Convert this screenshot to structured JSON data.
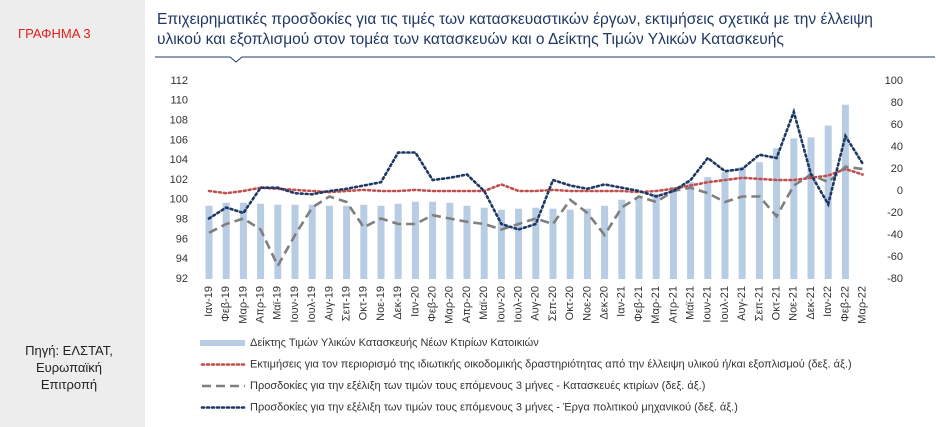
{
  "sidebar": {
    "label": "ΓΡΑΦΗΜΑ 3",
    "source": "Πηγή: ΕΛΣΤΑΤ, Ευρωπαϊκή Επιτροπή"
  },
  "chart_data": {
    "type": "combo",
    "title": "Επιχειρηματικές προσδοκίες για τις τιμές των κατασκευαστικών έργων, εκτιμήσεις  σχετικά με την έλλειψη υλικού και εξοπλισμού στον τομέα των κατασκευών και ο Δείκτης Τιμών Υλικών Κατασκευής",
    "categories": [
      "Ιαν-19",
      "Φεβ-19",
      "Μαρ-19",
      "Απρ-19",
      "Μαϊ-19",
      "Ιουν-19",
      "Ιουλ-19",
      "Αυγ-19",
      "Σεπ-19",
      "Οκτ-19",
      "Νοε-19",
      "Δεκ-19",
      "Ιαν-20",
      "Φεβ-20",
      "Μαρ-20",
      "Απρ-20",
      "Μαϊ-20",
      "Ιουν-20",
      "Ιουλ-20",
      "Αυγ-20",
      "Σεπ-20",
      "Οκτ-20",
      "Νοε-20",
      "Δεκ-20",
      "Ιαν-21",
      "Φεβ-21",
      "Μαρ-21",
      "Απρ-21",
      "Μαϊ-21",
      "Ιουν-21",
      "Ιουλ-21",
      "Αυγ-21",
      "Σεπ-21",
      "Οκτ-21",
      "Νοε-21",
      "Δεκ-21",
      "Ιαν-22",
      "Φεβ-22",
      "Μαρ-22"
    ],
    "ylim": [
      92,
      112
    ],
    "yticks": [
      92,
      94,
      96,
      98,
      100,
      102,
      104,
      106,
      108,
      110,
      112
    ],
    "y2lim": [
      -80,
      100
    ],
    "y2ticks": [
      -80,
      -60,
      -40,
      -20,
      0,
      20,
      40,
      60,
      80,
      100
    ],
    "series": [
      {
        "name": "Δείκτης Τιμών Υλικών Κατασκευής Νέων Κτιρίων Κατοικιών",
        "type": "bar",
        "color": "#b8cce4",
        "values": [
          99.4,
          99.7,
          99.7,
          99.6,
          99.5,
          99.5,
          99.5,
          99.4,
          99.4,
          99.5,
          99.4,
          99.6,
          99.8,
          99.8,
          99.7,
          99.4,
          99.2,
          99.0,
          99.1,
          99.2,
          99.1,
          99.0,
          99.1,
          99.4,
          100.0,
          100.2,
          100.6,
          101.3,
          101.8,
          102.3,
          102.8,
          103.3,
          103.8,
          105.2,
          106.2,
          106.3,
          107.5,
          109.6,
          null
        ]
      },
      {
        "name": "Εκτιμήσεις για τον περιορισμό της ιδιωτικής οικοδομικής δραστηριότητας από την έλλειψη υλικού ή/και εξοπλισμού (δεξ. άξ.)",
        "type": "line",
        "axis": "y2",
        "dash": "dotted",
        "color": "#c0504d",
        "values": [
          0,
          -2,
          0,
          3,
          2,
          1,
          0,
          -1,
          0,
          1,
          0,
          0,
          1,
          0,
          0,
          0,
          0,
          6,
          0,
          0,
          1,
          0,
          0,
          0,
          0,
          -1,
          0,
          2,
          5,
          8,
          10,
          12,
          11,
          10,
          10,
          12,
          14,
          20,
          15
        ]
      },
      {
        "name": "Προσδοκίες για την εξέλιξη των τιμών τους επόμενους 3 μήνες - Κατασκευές κτιρίων (δεξ. άξ.)",
        "type": "line",
        "axis": "y2",
        "dash": "dashed",
        "color": "#7f7f7f",
        "values": [
          -38,
          -30,
          -25,
          -35,
          -68,
          -40,
          -15,
          -5,
          -10,
          -33,
          -25,
          -30,
          -30,
          -22,
          -25,
          -28,
          -30,
          -35,
          -30,
          -25,
          -30,
          -8,
          -20,
          -40,
          -15,
          -5,
          -10,
          0,
          3,
          -2,
          -10,
          -5,
          -5,
          -23,
          5,
          15,
          8,
          22,
          20
        ]
      },
      {
        "name": "Προσδοκίες για την εξέλιξη των τιμών τους επόμενους 3 μήνες - Έργα πολιτικού μηχανικού (δεξ. άξ.)",
        "type": "line",
        "axis": "y2",
        "dash": "dotted",
        "color": "#1f3864",
        "values": [
          -25,
          -15,
          -20,
          3,
          3,
          -2,
          -3,
          0,
          2,
          5,
          8,
          35,
          35,
          10,
          12,
          15,
          0,
          -30,
          -35,
          -30,
          10,
          5,
          2,
          6,
          3,
          0,
          -5,
          0,
          10,
          30,
          18,
          20,
          33,
          30,
          72,
          15,
          -12,
          50,
          25
        ]
      }
    ]
  }
}
